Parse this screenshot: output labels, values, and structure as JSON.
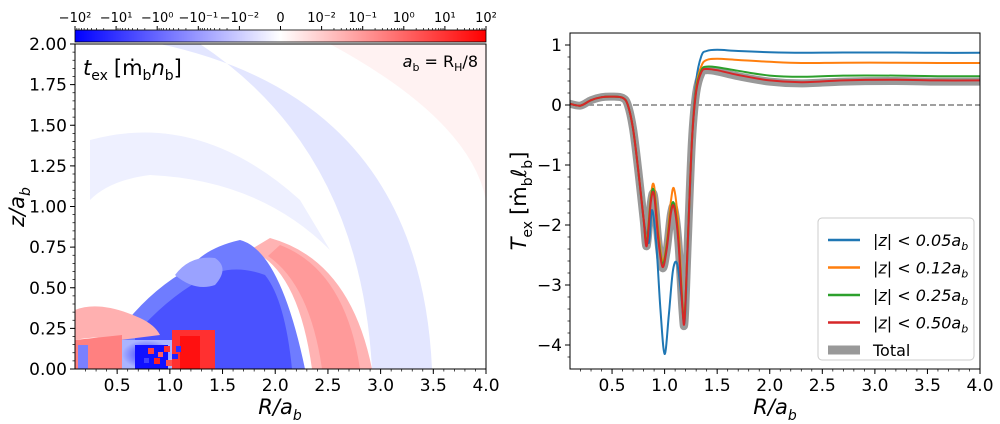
{
  "colors": {
    "negative": "#0000ff",
    "positive": "#ff0000",
    "neutral": "#ffffff",
    "series_blue": "#1f77b4",
    "series_orange": "#ff7f0e",
    "series_green": "#2ca02c",
    "series_red": "#d62728",
    "total": "#999999",
    "zero_line": "#808080"
  },
  "colorbar": {
    "scale": "symlog",
    "tick_labels": [
      "−10²",
      "−10¹",
      "−10⁰",
      "−10⁻¹",
      "−10⁻²",
      "0",
      "10⁻²",
      "10⁻¹",
      "10⁰",
      "10¹",
      "10²"
    ]
  },
  "chart_data": [
    {
      "type": "heatmap",
      "panel": "left",
      "annotation_quantity": "t",
      "annotation_sub": "ex",
      "annotation_units": "[ṁ",
      "annotation_units_sub1": "b",
      "annotation_units_n": "n",
      "annotation_units_sub2": "b",
      "annotation_units_end": "]",
      "corner_note_a": "a",
      "corner_note_a_sub": "b",
      "corner_note_eq": " = R",
      "corner_note_R_sub": "H",
      "corner_note_end": "/8",
      "xlabel_main": "R/a",
      "xlabel_sub": "b",
      "ylabel_main": "z/a",
      "ylabel_sub": "b",
      "xlim": [
        0.1,
        4.0
      ],
      "ylim": [
        0.0,
        2.0
      ],
      "xticks": [
        "0.5",
        "1.0",
        "1.5",
        "2.0",
        "2.5",
        "3.0",
        "3.5",
        "4.0"
      ],
      "yticks": [
        "0.00",
        "0.25",
        "0.50",
        "0.75",
        "1.00",
        "1.25",
        "1.50",
        "1.75",
        "2.00"
      ],
      "color_range": [
        -100,
        100
      ],
      "color_scale": "symlog"
    },
    {
      "type": "line",
      "panel": "right",
      "xlabel_main": "R/a",
      "xlabel_sub": "b",
      "ylabel_main": "T",
      "ylabel_sub": "ex",
      "ylabel_units": "[ṁ",
      "ylabel_units_sub1": "b",
      "ylabel_units_l": "ℓ",
      "ylabel_units_sub2": "b",
      "ylabel_units_end": "]",
      "xlim": [
        0.1,
        4.0
      ],
      "ylim": [
        -4.4,
        1.2
      ],
      "xticks": [
        "0.5",
        "1.0",
        "1.5",
        "2.0",
        "2.5",
        "3.0",
        "3.5",
        "4.0"
      ],
      "yticks": [
        "−4",
        "−3",
        "−2",
        "−1",
        "0",
        "1"
      ],
      "legend_position": "lower right",
      "reference_line": 0,
      "series": [
        {
          "label_prefix": "|z| < 0.05a",
          "label_sub": "b",
          "color": "#1f77b4",
          "points": [
            [
              0.1,
              0.02
            ],
            [
              0.2,
              -0.01
            ],
            [
              0.3,
              0.08
            ],
            [
              0.4,
              0.13
            ],
            [
              0.5,
              0.14
            ],
            [
              0.6,
              0.12
            ],
            [
              0.65,
              0.0
            ],
            [
              0.7,
              -0.4
            ],
            [
              0.75,
              -1.1
            ],
            [
              0.8,
              -1.9
            ],
            [
              0.85,
              -2.3
            ],
            [
              0.88,
              -1.75
            ],
            [
              0.92,
              -2.3
            ],
            [
              0.96,
              -3.4
            ],
            [
              1.0,
              -4.15
            ],
            [
              1.04,
              -3.5
            ],
            [
              1.08,
              -2.75
            ],
            [
              1.12,
              -2.65
            ],
            [
              1.16,
              -3.2
            ],
            [
              1.19,
              -3.62
            ],
            [
              1.22,
              -2.4
            ],
            [
              1.26,
              -0.6
            ],
            [
              1.3,
              0.4
            ],
            [
              1.35,
              0.82
            ],
            [
              1.4,
              0.9
            ],
            [
              1.5,
              0.92
            ],
            [
              1.7,
              0.9
            ],
            [
              2.0,
              0.88
            ],
            [
              2.3,
              0.87
            ],
            [
              2.7,
              0.875
            ],
            [
              3.2,
              0.875
            ],
            [
              3.6,
              0.87
            ],
            [
              4.0,
              0.87
            ]
          ]
        },
        {
          "label_prefix": "|z| < 0.12a",
          "label_sub": "b",
          "color": "#ff7f0e",
          "points": [
            [
              0.1,
              0.02
            ],
            [
              0.2,
              -0.01
            ],
            [
              0.3,
              0.08
            ],
            [
              0.4,
              0.13
            ],
            [
              0.5,
              0.14
            ],
            [
              0.6,
              0.12
            ],
            [
              0.65,
              0.0
            ],
            [
              0.7,
              -0.4
            ],
            [
              0.75,
              -1.1
            ],
            [
              0.8,
              -1.9
            ],
            [
              0.83,
              -2.25
            ],
            [
              0.87,
              -1.5
            ],
            [
              0.9,
              -1.35
            ],
            [
              0.94,
              -2.1
            ],
            [
              0.98,
              -2.6
            ],
            [
              1.02,
              -2.3
            ],
            [
              1.06,
              -1.6
            ],
            [
              1.09,
              -1.4
            ],
            [
              1.13,
              -2.0
            ],
            [
              1.17,
              -3.3
            ],
            [
              1.19,
              -3.55
            ],
            [
              1.22,
              -2.3
            ],
            [
              1.26,
              -0.6
            ],
            [
              1.3,
              0.3
            ],
            [
              1.35,
              0.65
            ],
            [
              1.4,
              0.75
            ],
            [
              1.5,
              0.77
            ],
            [
              1.7,
              0.75
            ],
            [
              2.0,
              0.72
            ],
            [
              2.3,
              0.7
            ],
            [
              2.7,
              0.705
            ],
            [
              3.2,
              0.705
            ],
            [
              3.6,
              0.7
            ],
            [
              4.0,
              0.7
            ]
          ]
        },
        {
          "label_prefix": "|z| < 0.25a",
          "label_sub": "b",
          "color": "#2ca02c",
          "points": [
            [
              0.1,
              0.02
            ],
            [
              0.2,
              -0.01
            ],
            [
              0.3,
              0.08
            ],
            [
              0.4,
              0.13
            ],
            [
              0.5,
              0.14
            ],
            [
              0.6,
              0.12
            ],
            [
              0.65,
              0.0
            ],
            [
              0.7,
              -0.4
            ],
            [
              0.75,
              -1.1
            ],
            [
              0.8,
              -1.9
            ],
            [
              0.83,
              -2.3
            ],
            [
              0.87,
              -1.55
            ],
            [
              0.9,
              -1.45
            ],
            [
              0.94,
              -2.2
            ],
            [
              0.98,
              -2.65
            ],
            [
              1.02,
              -2.35
            ],
            [
              1.06,
              -1.75
            ],
            [
              1.09,
              -1.65
            ],
            [
              1.13,
              -2.2
            ],
            [
              1.17,
              -3.35
            ],
            [
              1.19,
              -3.55
            ],
            [
              1.22,
              -2.3
            ],
            [
              1.26,
              -0.6
            ],
            [
              1.3,
              0.25
            ],
            [
              1.35,
              0.58
            ],
            [
              1.4,
              0.64
            ],
            [
              1.5,
              0.63
            ],
            [
              1.7,
              0.57
            ],
            [
              2.0,
              0.49
            ],
            [
              2.3,
              0.47
            ],
            [
              2.7,
              0.49
            ],
            [
              3.2,
              0.49
            ],
            [
              3.6,
              0.48
            ],
            [
              4.0,
              0.48
            ]
          ]
        },
        {
          "label_prefix": "|z| < 0.50a",
          "label_sub": "b",
          "color": "#d62728",
          "points": [
            [
              0.1,
              0.02
            ],
            [
              0.2,
              -0.01
            ],
            [
              0.3,
              0.08
            ],
            [
              0.4,
              0.13
            ],
            [
              0.5,
              0.14
            ],
            [
              0.6,
              0.12
            ],
            [
              0.65,
              0.0
            ],
            [
              0.7,
              -0.4
            ],
            [
              0.75,
              -1.1
            ],
            [
              0.8,
              -1.9
            ],
            [
              0.83,
              -2.35
            ],
            [
              0.87,
              -1.6
            ],
            [
              0.9,
              -1.5
            ],
            [
              0.94,
              -2.25
            ],
            [
              0.98,
              -2.7
            ],
            [
              1.02,
              -2.4
            ],
            [
              1.06,
              -1.8
            ],
            [
              1.09,
              -1.7
            ],
            [
              1.13,
              -2.25
            ],
            [
              1.17,
              -3.4
            ],
            [
              1.19,
              -3.58
            ],
            [
              1.22,
              -2.3
            ],
            [
              1.26,
              -0.6
            ],
            [
              1.3,
              0.22
            ],
            [
              1.35,
              0.55
            ],
            [
              1.4,
              0.6
            ],
            [
              1.5,
              0.58
            ],
            [
              1.7,
              0.5
            ],
            [
              2.0,
              0.41
            ],
            [
              2.3,
              0.38
            ],
            [
              2.7,
              0.41
            ],
            [
              3.2,
              0.42
            ],
            [
              3.6,
              0.41
            ],
            [
              4.0,
              0.41
            ]
          ]
        },
        {
          "label_prefix": "Total",
          "label_sub": "",
          "color": "#999999",
          "points": [
            [
              0.1,
              0.02
            ],
            [
              0.2,
              -0.01
            ],
            [
              0.3,
              0.08
            ],
            [
              0.4,
              0.13
            ],
            [
              0.5,
              0.14
            ],
            [
              0.6,
              0.12
            ],
            [
              0.65,
              0.0
            ],
            [
              0.7,
              -0.4
            ],
            [
              0.75,
              -1.1
            ],
            [
              0.8,
              -1.9
            ],
            [
              0.83,
              -2.35
            ],
            [
              0.87,
              -1.62
            ],
            [
              0.9,
              -1.52
            ],
            [
              0.94,
              -2.27
            ],
            [
              0.98,
              -2.72
            ],
            [
              1.02,
              -2.42
            ],
            [
              1.06,
              -1.82
            ],
            [
              1.09,
              -1.72
            ],
            [
              1.13,
              -2.27
            ],
            [
              1.17,
              -3.42
            ],
            [
              1.19,
              -3.6
            ],
            [
              1.22,
              -2.3
            ],
            [
              1.26,
              -0.6
            ],
            [
              1.3,
              0.2
            ],
            [
              1.35,
              0.53
            ],
            [
              1.4,
              0.58
            ],
            [
              1.5,
              0.56
            ],
            [
              1.7,
              0.48
            ],
            [
              2.0,
              0.39
            ],
            [
              2.3,
              0.36
            ],
            [
              2.7,
              0.39
            ],
            [
              3.2,
              0.4
            ],
            [
              3.6,
              0.39
            ],
            [
              4.0,
              0.39
            ]
          ]
        }
      ]
    }
  ]
}
